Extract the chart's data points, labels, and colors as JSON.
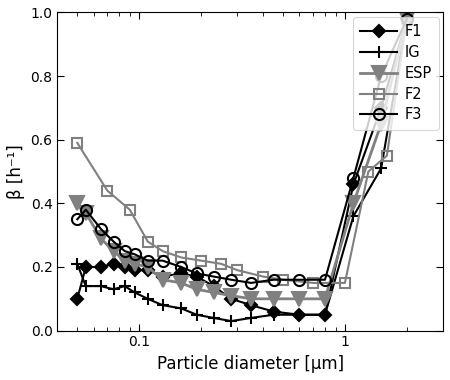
{
  "xlabel": "Particle diameter [μm]",
  "ylabel": "β [h⁻¹]",
  "xlim": [
    0.04,
    3.0
  ],
  "ylim": [
    0,
    1.0
  ],
  "F1": {
    "x": [
      0.05,
      0.055,
      0.065,
      0.075,
      0.085,
      0.095,
      0.11,
      0.13,
      0.16,
      0.19,
      0.23,
      0.28,
      0.35,
      0.45,
      0.6,
      0.8,
      1.1,
      1.5,
      2.0
    ],
    "y": [
      0.1,
      0.2,
      0.2,
      0.21,
      0.2,
      0.19,
      0.19,
      0.17,
      0.18,
      0.17,
      0.14,
      0.1,
      0.08,
      0.06,
      0.05,
      0.05,
      0.46,
      0.7,
      0.98
    ],
    "color": "#000000",
    "marker": "D",
    "linestyle": "-",
    "linewidth": 1.5,
    "markersize": 6,
    "markerfacecolor": "#000000"
  },
  "IG": {
    "x": [
      0.05,
      0.055,
      0.065,
      0.075,
      0.085,
      0.095,
      0.11,
      0.13,
      0.16,
      0.19,
      0.23,
      0.28,
      0.35,
      0.45,
      0.6,
      0.8,
      1.1,
      1.5,
      2.0
    ],
    "y": [
      0.21,
      0.14,
      0.14,
      0.13,
      0.14,
      0.12,
      0.1,
      0.08,
      0.07,
      0.05,
      0.04,
      0.03,
      0.04,
      0.05,
      0.05,
      0.05,
      0.36,
      0.51,
      0.98
    ],
    "color": "#000000",
    "marker": "+",
    "linestyle": "-",
    "linewidth": 1.5,
    "markersize": 8,
    "markerfacecolor": "#000000"
  },
  "ESP": {
    "x": [
      0.05,
      0.055,
      0.065,
      0.075,
      0.085,
      0.095,
      0.11,
      0.13,
      0.16,
      0.19,
      0.23,
      0.28,
      0.35,
      0.45,
      0.6,
      0.8,
      1.1,
      1.5,
      2.0
    ],
    "y": [
      0.4,
      0.37,
      0.29,
      0.25,
      0.22,
      0.21,
      0.2,
      0.16,
      0.15,
      0.13,
      0.12,
      0.11,
      0.1,
      0.1,
      0.1,
      0.1,
      0.4,
      0.65,
      0.98
    ],
    "color": "#808080",
    "marker": "v",
    "linestyle": "-",
    "linewidth": 2.0,
    "markersize": 10,
    "markerfacecolor": "#808080"
  },
  "F2": {
    "x": [
      0.05,
      0.07,
      0.09,
      0.11,
      0.13,
      0.16,
      0.2,
      0.25,
      0.3,
      0.4,
      0.5,
      0.7,
      1.0,
      1.3,
      1.6,
      2.0
    ],
    "y": [
      0.59,
      0.44,
      0.38,
      0.28,
      0.25,
      0.23,
      0.22,
      0.21,
      0.19,
      0.17,
      0.16,
      0.15,
      0.15,
      0.5,
      0.55,
      0.98
    ],
    "color": "#808080",
    "marker": "s",
    "linestyle": "-",
    "linewidth": 1.5,
    "markersize": 7,
    "markerfacecolor": "none"
  },
  "F3": {
    "x": [
      0.05,
      0.055,
      0.065,
      0.075,
      0.085,
      0.095,
      0.11,
      0.13,
      0.16,
      0.19,
      0.23,
      0.28,
      0.35,
      0.45,
      0.6,
      0.8,
      1.1,
      1.5,
      2.0
    ],
    "y": [
      0.35,
      0.38,
      0.32,
      0.28,
      0.25,
      0.24,
      0.22,
      0.22,
      0.2,
      0.18,
      0.17,
      0.16,
      0.15,
      0.16,
      0.16,
      0.16,
      0.48,
      0.8,
      0.98
    ],
    "color": "#000000",
    "marker": "o",
    "linestyle": "-",
    "linewidth": 1.5,
    "markersize": 8,
    "markerfacecolor": "none"
  },
  "yticks": [
    0,
    0.2,
    0.4,
    0.6,
    0.8,
    1.0
  ],
  "xticks_major": [
    0.1,
    1.0
  ],
  "xticklabels_major": [
    "0.1",
    "1"
  ]
}
